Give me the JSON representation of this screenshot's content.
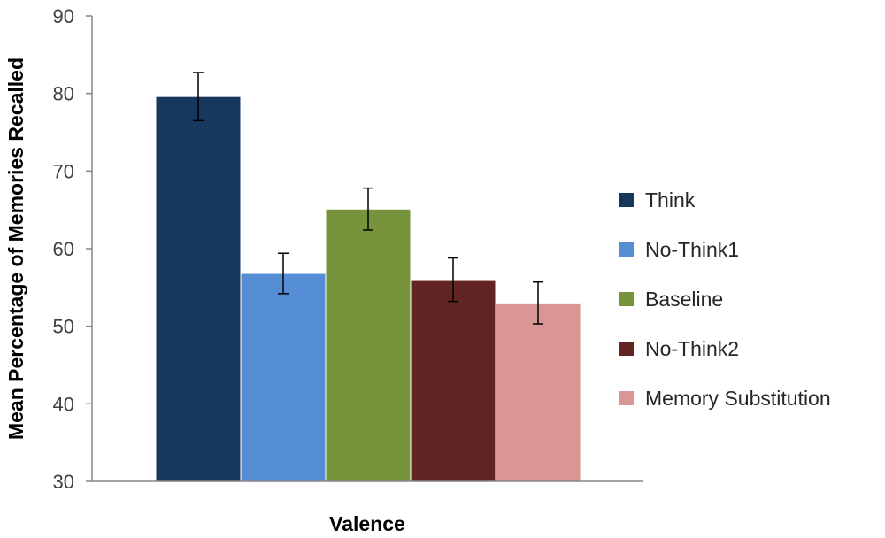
{
  "chart_data": {
    "type": "bar",
    "title": "",
    "xlabel": "Valence",
    "ylabel": "Mean Percentage of Memories Recalled",
    "ylim": [
      30,
      90
    ],
    "yticks": [
      30,
      40,
      50,
      60,
      70,
      80,
      90
    ],
    "grid": false,
    "legend_position": "right",
    "series": [
      {
        "name": "Think",
        "value": 79.6,
        "error": 3.1,
        "color": "#17375e"
      },
      {
        "name": "No-Think1",
        "value": 56.8,
        "error": 2.6,
        "color": "#558ed5"
      },
      {
        "name": "Baseline",
        "value": 65.1,
        "error": 2.7,
        "color": "#77933c"
      },
      {
        "name": "No-Think2",
        "value": 56.0,
        "error": 2.8,
        "color": "#632523"
      },
      {
        "name": "Memory Substitution",
        "value": 53.0,
        "error": 2.7,
        "color": "#d99694"
      }
    ]
  }
}
